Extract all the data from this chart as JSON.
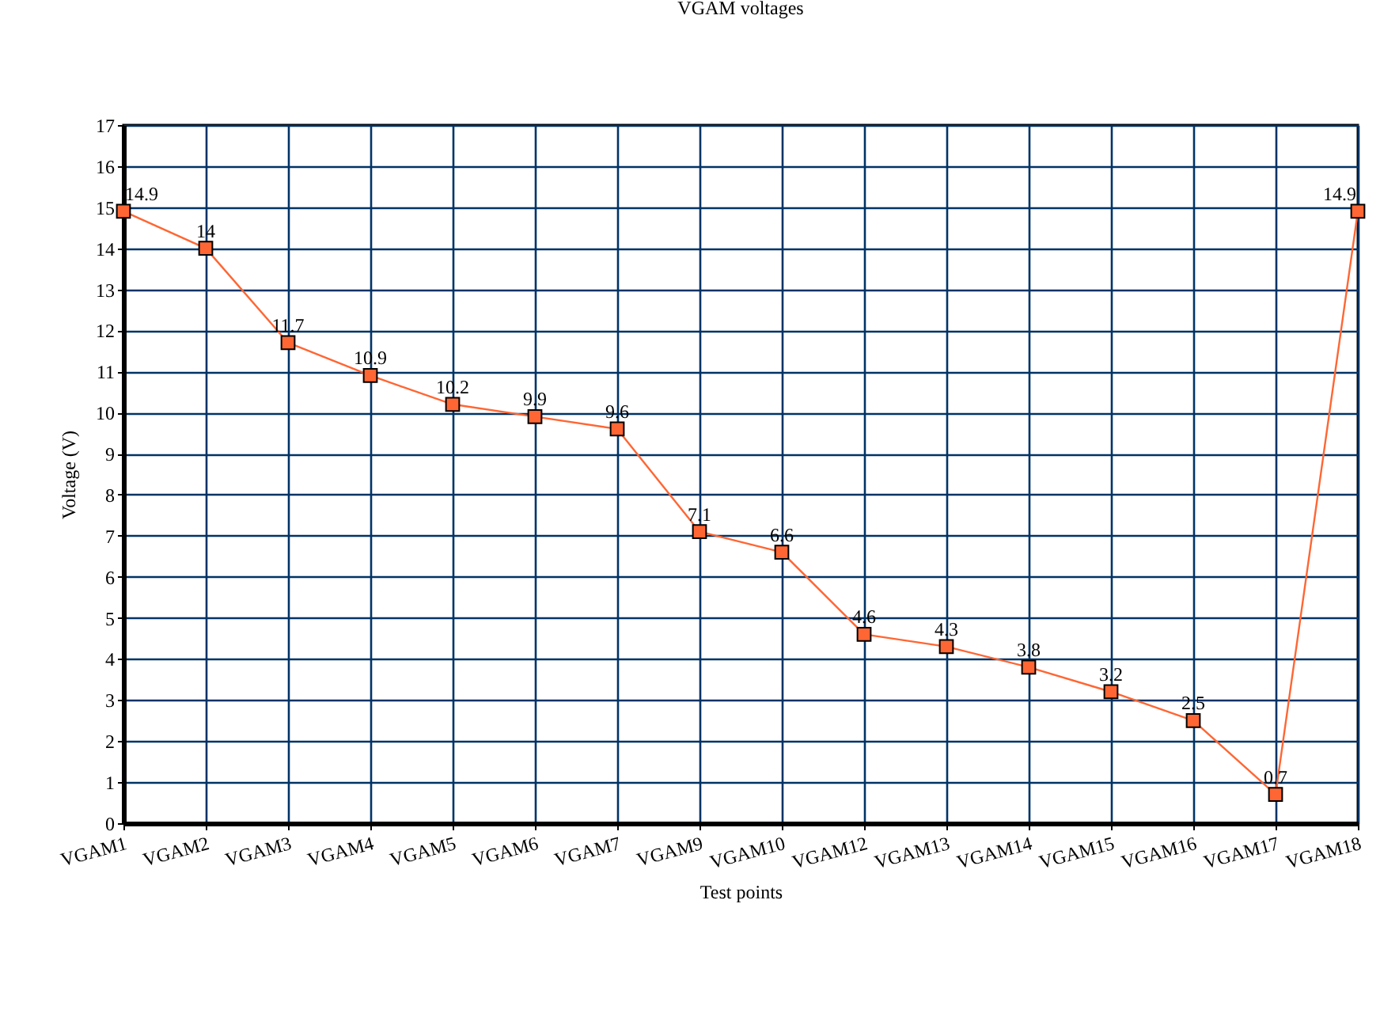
{
  "chart_data": {
    "type": "line",
    "title": "VGAM voltages",
    "xlabel": "Test points",
    "ylabel": "Voltage (V)",
    "categories": [
      "VGAM1",
      "VGAM2",
      "VGAM3",
      "VGAM4",
      "VGAM5",
      "VGAM6",
      "VGAM7",
      "VGAM9",
      "VGAM10",
      "VGAM12",
      "VGAM13",
      "VGAM14",
      "VGAM15",
      "VGAM16",
      "VGAM17",
      "VGAM18"
    ],
    "series": [
      {
        "color": "#ff6633",
        "values": [
          14.9,
          14,
          11.7,
          10.9,
          10.2,
          9.9,
          9.6,
          7.1,
          6.6,
          4.6,
          4.3,
          3.8,
          3.2,
          2.5,
          0.7,
          14.9
        ]
      }
    ],
    "ylim": [
      0,
      17
    ],
    "yticks": [
      0,
      1,
      2,
      3,
      4,
      5,
      6,
      7,
      8,
      9,
      10,
      11,
      12,
      13,
      14,
      15,
      16,
      17
    ],
    "grid": true,
    "marker": "square",
    "data_labels": true
  }
}
